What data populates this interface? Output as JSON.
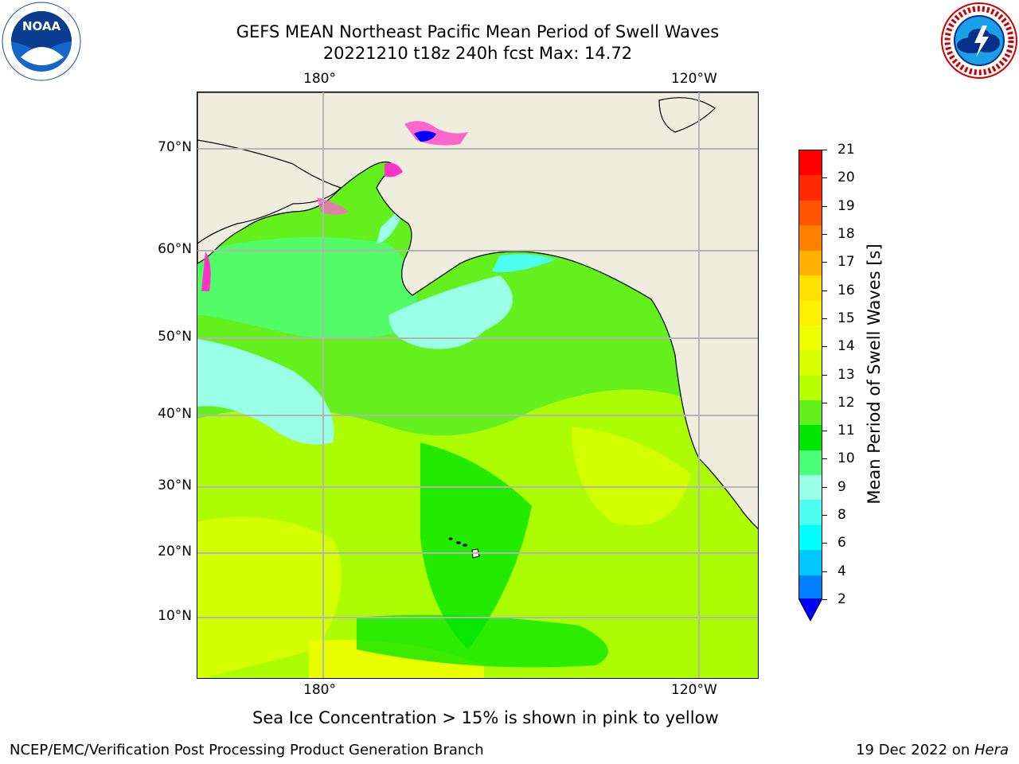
{
  "header": {
    "title_line1": "GEFS MEAN Northeast Pacific Mean Period of Swell Waves",
    "title_line2": "20221210 t18z 240h fcst   Max: 14.72"
  },
  "logos": {
    "left": {
      "name": "noaa-logo",
      "text": "NOAA",
      "ring_text": "NATIONAL OCEANIC AND ATMOSPHERIC ADMINISTRATION · U.S. DEPARTMENT OF COMMERCE"
    },
    "right": {
      "name": "nws-logo",
      "ring_text": "NATIONAL WEATHER SERVICE"
    }
  },
  "map": {
    "lon_labels": [
      "180°",
      "120°W"
    ],
    "lat_labels": [
      "70°N",
      "60°N",
      "50°N",
      "40°N",
      "30°N",
      "20°N",
      "10°N"
    ],
    "land_color": "#efedde",
    "grid_color": "#b4b4b4"
  },
  "colorbar": {
    "label": "Mean Period of Swell Waves [s]",
    "ticks": [
      "21",
      "20",
      "19",
      "18",
      "17",
      "16",
      "15",
      "14",
      "13",
      "12",
      "11",
      "10",
      "9",
      "8",
      "6",
      "4",
      "2"
    ],
    "colors_top_to_bottom": [
      "#ff0000",
      "#ff2a00",
      "#ff5500",
      "#ff8000",
      "#ffb000",
      "#ffe000",
      "#fff000",
      "#f0ff00",
      "#d8ff00",
      "#b8ff00",
      "#63f01c",
      "#00e600",
      "#4cff7a",
      "#99ffe6",
      "#4cfff0",
      "#00ffff",
      "#00c8ff",
      "#0080ff"
    ],
    "extend_color": "#0000ff"
  },
  "notes": {
    "ice": "Sea Ice Concentration > 15% is shown in pink to yellow"
  },
  "footer": {
    "left": "NCEP/EMC/Verification Post Processing Product Generation Branch",
    "date": "19 Dec 2022 on ",
    "machine": "Hera"
  }
}
